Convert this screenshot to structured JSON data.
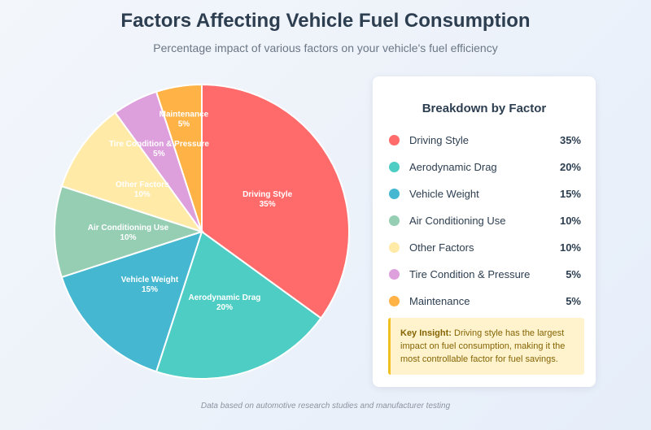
{
  "chart_data": {
    "type": "pie",
    "title": "Factors Affecting Vehicle Fuel Consumption",
    "subtitle": "Percentage impact of various factors on your vehicle's fuel efficiency",
    "unit": "%",
    "slices": [
      {
        "label": "Driving Style",
        "value": 35,
        "display": "35%",
        "color": "#FF6B6B"
      },
      {
        "label": "Aerodynamic Drag",
        "value": 20,
        "display": "20%",
        "color": "#4ECDC4"
      },
      {
        "label": "Vehicle Weight",
        "value": 15,
        "display": "15%",
        "color": "#45B7D1"
      },
      {
        "label": "Air Conditioning Use",
        "value": 10,
        "display": "10%",
        "color": "#96CEB4"
      },
      {
        "label": "Other Factors",
        "value": 10,
        "display": "10%",
        "color": "#FFEAA7"
      },
      {
        "label": "Tire Condition & Pressure",
        "value": 5,
        "display": "5%",
        "color": "#DDA0DD"
      },
      {
        "label": "Maintenance",
        "value": 5,
        "display": "5%",
        "color": "#FFB347"
      }
    ]
  },
  "panel": {
    "title": "Breakdown by Factor",
    "insight_label": "Key Insight:",
    "insight_text": " Driving style has the largest impact on fuel consumption, making it the most controllable factor for fuel savings."
  },
  "footer": "Data based on automotive research studies and manufacturer testing"
}
